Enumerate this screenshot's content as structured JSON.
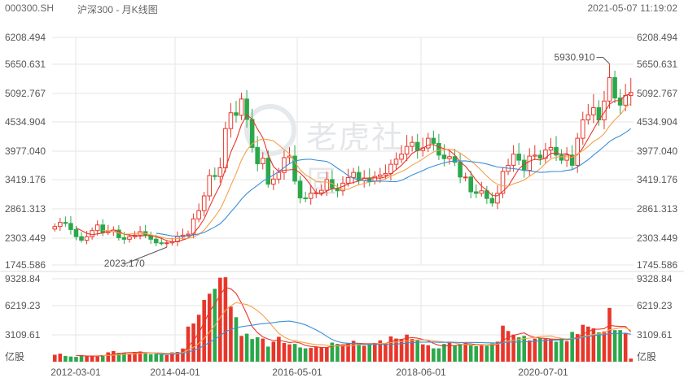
{
  "header": {
    "code": "000300.SH",
    "name": "沪深300 - 月K线图",
    "time": "2021-05-07 11:19:02"
  },
  "watermark": {
    "text": "老虎社區",
    "logo": "tiger-logo-icon"
  },
  "colors": {
    "up": "#e8362a",
    "down": "#2aa84a",
    "ma5": "#e8362a",
    "ma10": "#f5a14a",
    "ma20": "#3a8fd8",
    "grid": "#e6e6e6",
    "axis": "#555555"
  },
  "chart_data": {
    "type": "candlestick",
    "price_ticks": [
      "6208.494",
      "5650.631",
      "5092.767",
      "4534.904",
      "3977.040",
      "3419.176",
      "2861.313",
      "2303.449",
      "1745.586"
    ],
    "price_range": [
      1745.586,
      6208.494
    ],
    "volume_ticks": [
      "9328.84",
      "6219.23",
      "3109.61",
      "亿股"
    ],
    "volume_range": [
      0,
      9328.84
    ],
    "x_labels": [
      "2012-03-01",
      "2014-04-01",
      "2016-05-01",
      "2018-06-01",
      "2020-07-01"
    ],
    "annotations": [
      {
        "label": "5930.910",
        "kind": "max"
      },
      {
        "label": "2023.170",
        "kind": "min"
      }
    ],
    "ma_periods": [
      5,
      10,
      20
    ],
    "closes": [
      2500,
      2580,
      2560,
      2440,
      2300,
      2230,
      2300,
      2420,
      2530,
      2380,
      2400,
      2430,
      2280,
      2250,
      2300,
      2330,
      2400,
      2330,
      2250,
      2180,
      2170,
      2180,
      2200,
      2300,
      2330,
      2350,
      2650,
      2810,
      3100,
      3500,
      3480,
      3650,
      4420,
      4730,
      4680,
      5000,
      4600,
      4050,
      3730,
      3840,
      3330,
      3430,
      3560,
      3850,
      3880,
      3390,
      3060,
      3050,
      3150,
      3160,
      3210,
      3420,
      3250,
      3200,
      3350,
      3460,
      3560,
      3400,
      3450,
      3390,
      3480,
      3510,
      3540,
      3720,
      3820,
      3920,
      4070,
      4150,
      3990,
      4040,
      4230,
      4130,
      3900,
      3830,
      3870,
      3760,
      3470,
      3470,
      3180,
      3150,
      3200,
      3050,
      2960,
      3150,
      3580,
      3700,
      3920,
      3800,
      3600,
      3880,
      3900,
      3840,
      4000,
      4050,
      3900,
      3800,
      3900,
      3700,
      4230,
      4590,
      4690,
      4830,
      4590,
      4960,
      5420,
      5020,
      4880,
      5070,
      5130
    ],
    "volumes": [
      780,
      900,
      650,
      580,
      540,
      720,
      650,
      680,
      580,
      720,
      1050,
      1200,
      1000,
      980,
      900,
      1100,
      1150,
      950,
      850,
      900,
      800,
      750,
      1050,
      1100,
      1480,
      3950,
      4300,
      5280,
      6950,
      7650,
      8200,
      9450,
      9500,
      6200,
      5000,
      2900,
      3150,
      2550,
      2750,
      2600,
      1700,
      2250,
      2800,
      2100,
      1950,
      2000,
      1600,
      1500,
      1550,
      1700,
      1650,
      1600,
      2150,
      2000,
      1950,
      2050,
      2350,
      2000,
      1800,
      1900,
      2100,
      2400,
      2100,
      2850,
      2600,
      2550,
      3050,
      2550,
      2450,
      1950,
      1850,
      1500,
      1500,
      2000,
      2250,
      1800,
      2000,
      2100,
      1900,
      1750,
      1850,
      1800,
      2050,
      2250,
      4050,
      3450,
      3050,
      2750,
      2900,
      2400,
      2600,
      2650,
      2550,
      2550,
      2250,
      2600,
      2300,
      3350,
      3100,
      4150,
      3950,
      3750,
      3300,
      3400,
      6050,
      3550,
      3550,
      3250,
      350
    ]
  }
}
